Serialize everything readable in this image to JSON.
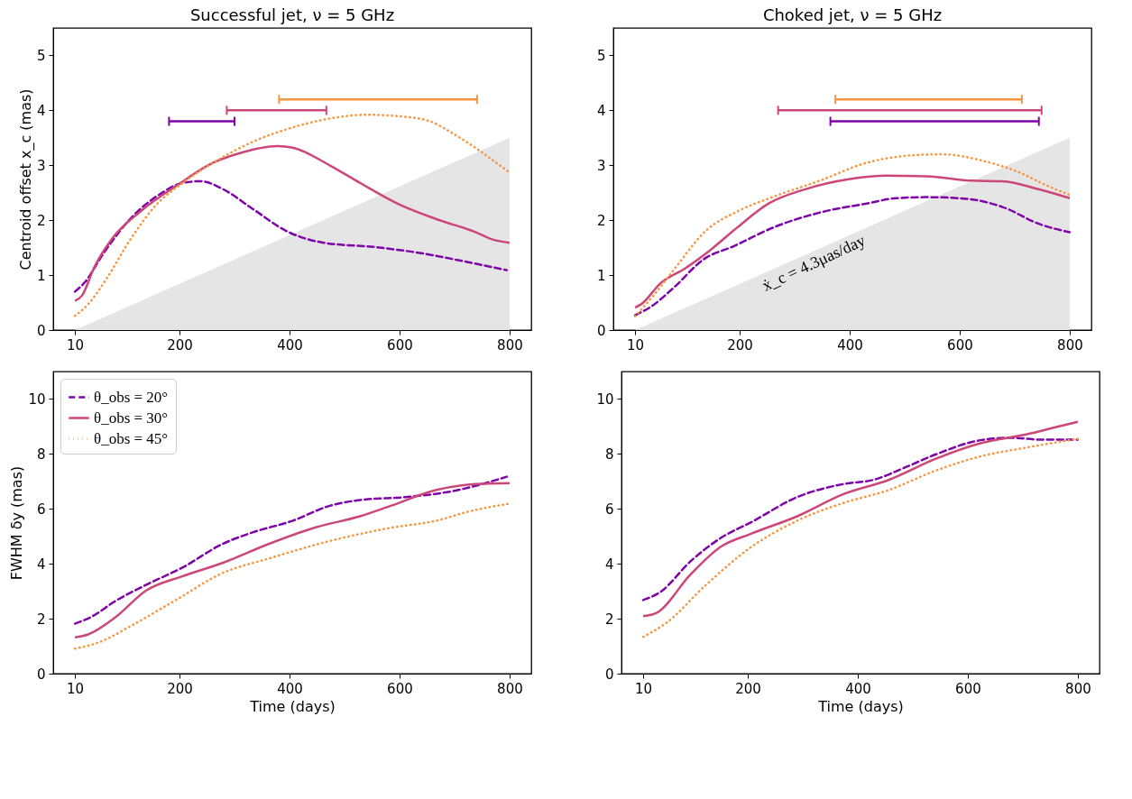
{
  "chart_data": [
    {
      "type": "line",
      "title": "Successful jet, ν = 5 GHz",
      "ylabel": "Centroid offset x_c (mas)",
      "xlim": [
        -29.5,
        839.5
      ],
      "ylim": [
        0,
        5.5
      ],
      "xticks": [
        10,
        200,
        400,
        600,
        800
      ],
      "yticks": [
        0,
        1,
        2,
        3,
        4,
        5
      ],
      "series": [
        {
          "type": "area",
          "color": "#e5e5e5",
          "x": [
            10,
            800
          ],
          "values": [
            0,
            3.5
          ]
        },
        {
          "type": "line",
          "color": "#7e03a8",
          "line_style": "dashed",
          "x": [
            10,
            28,
            62,
            112,
            167,
            206,
            239,
            278,
            334,
            395,
            462,
            556,
            639,
            723,
            795
          ],
          "values": [
            0.7,
            0.87,
            1.4,
            2.04,
            2.49,
            2.68,
            2.71,
            2.57,
            2.2,
            1.8,
            1.59,
            1.51,
            1.4,
            1.24,
            1.09
          ]
        },
        {
          "type": "line",
          "color": "#cc4778",
          "line_style": "solid",
          "x": [
            10,
            23,
            45,
            78,
            128,
            195,
            262,
            306,
            378,
            406,
            473,
            528,
            601,
            667,
            739,
            772,
            800
          ],
          "values": [
            0.53,
            0.63,
            1.14,
            1.67,
            2.15,
            2.63,
            3.05,
            3.21,
            3.35,
            3.32,
            3.0,
            2.68,
            2.28,
            2.02,
            1.78,
            1.64,
            1.59
          ]
        },
        {
          "type": "line",
          "color": "#f89540",
          "line_style": "dotted",
          "x": [
            10,
            34,
            67,
            112,
            156,
            206,
            262,
            334,
            406,
            473,
            539,
            612,
            656,
            695,
            745,
            778,
            800
          ],
          "values": [
            0.26,
            0.47,
            0.93,
            1.67,
            2.26,
            2.68,
            3.05,
            3.43,
            3.69,
            3.85,
            3.92,
            3.88,
            3.8,
            3.59,
            3.27,
            3.03,
            2.87
          ]
        },
        {
          "type": "line",
          "color": "#7e03a8",
          "line_style": "solid",
          "x": [
            181,
            300
          ],
          "values": [
            3.8,
            3.8
          ]
        },
        {
          "type": "line",
          "color": "#cc4778",
          "line_style": "solid",
          "x": [
            286,
            467
          ],
          "values": [
            4.0,
            4.0
          ]
        },
        {
          "type": "line",
          "color": "#f89540",
          "line_style": "solid",
          "x": [
            381,
            741
          ],
          "values": [
            4.2,
            4.2
          ]
        }
      ]
    },
    {
      "type": "line",
      "title": "Choked jet, ν = 5 GHz",
      "xlim": [
        -29.5,
        839.5
      ],
      "ylim": [
        0,
        5.5
      ],
      "xticks": [
        10,
        200,
        400,
        600,
        800
      ],
      "yticks": [
        0,
        1,
        2,
        3,
        4,
        5
      ],
      "annotations": [
        "ẋ_c = 4.3μas/day"
      ],
      "series": [
        {
          "type": "area",
          "color": "#e5e5e5",
          "x": [
            10,
            800
          ],
          "values": [
            0,
            3.5
          ]
        },
        {
          "type": "line",
          "color": "#7e03a8",
          "line_style": "dashed",
          "x": [
            10,
            41,
            79,
            135,
            190,
            262,
            346,
            429,
            484,
            540,
            612,
            678,
            745,
            800
          ],
          "values": [
            0.27,
            0.44,
            0.76,
            1.29,
            1.53,
            1.87,
            2.14,
            2.3,
            2.4,
            2.42,
            2.39,
            2.24,
            1.93,
            1.78
          ]
        },
        {
          "type": "line",
          "color": "#cc4778",
          "line_style": "solid",
          "x": [
            10,
            21,
            57,
            102,
            146,
            196,
            252,
            318,
            401,
            467,
            540,
            623,
            678,
            745,
            800
          ],
          "values": [
            0.41,
            0.47,
            0.86,
            1.13,
            1.45,
            1.87,
            2.3,
            2.56,
            2.75,
            2.81,
            2.8,
            2.72,
            2.71,
            2.56,
            2.4
          ]
        },
        {
          "type": "line",
          "color": "#f89540",
          "line_style": "dotted",
          "x": [
            10,
            41,
            79,
            140,
            196,
            262,
            346,
            429,
            512,
            568,
            639,
            706,
            761,
            800
          ],
          "values": [
            0.25,
            0.6,
            1.08,
            1.82,
            2.16,
            2.43,
            2.72,
            3.04,
            3.18,
            3.2,
            3.09,
            2.88,
            2.62,
            2.46
          ]
        },
        {
          "type": "line",
          "color": "#f89540",
          "line_style": "solid",
          "x": [
            374,
            713
          ],
          "values": [
            4.2,
            4.2
          ]
        },
        {
          "type": "line",
          "color": "#cc4778",
          "line_style": "solid",
          "x": [
            270,
            749
          ],
          "values": [
            4.0,
            4.0
          ]
        },
        {
          "type": "line",
          "color": "#7e03a8",
          "line_style": "solid",
          "x": [
            365,
            744
          ],
          "values": [
            3.8,
            3.8
          ]
        }
      ]
    },
    {
      "type": "line",
      "xlabel": "Time (days)",
      "ylabel": "FWHM δy (mas)",
      "xlim": [
        -29.5,
        839.5
      ],
      "ylim": [
        0,
        11
      ],
      "xticks": [
        10,
        200,
        400,
        600,
        800
      ],
      "yticks": [
        0,
        2,
        4,
        6,
        8,
        10
      ],
      "legend": "top left",
      "series": [
        {
          "type": "line",
          "name": "θ_obs = 20°",
          "color": "#7e03a8",
          "line_style": "dashed",
          "x": [
            10,
            39,
            84,
            139,
            206,
            278,
            334,
            406,
            473,
            528,
            612,
            695,
            795
          ],
          "values": [
            1.82,
            2.06,
            2.65,
            3.23,
            3.87,
            4.72,
            5.15,
            5.57,
            6.11,
            6.32,
            6.43,
            6.64,
            7.17
          ]
        },
        {
          "type": "line",
          "name": "θ_obs = 30°",
          "color": "#cc4778",
          "line_style": "solid",
          "x": [
            10,
            34,
            84,
            139,
            206,
            278,
            362,
            445,
            528,
            584,
            667,
            739,
            800
          ],
          "values": [
            1.32,
            1.43,
            2.06,
            3.02,
            3.55,
            4.03,
            4.72,
            5.31,
            5.73,
            6.11,
            6.69,
            6.9,
            6.94
          ]
        },
        {
          "type": "line",
          "name": "θ_obs = 45°",
          "color": "#f89540",
          "line_style": "dotted",
          "x": [
            10,
            56,
            112,
            195,
            278,
            362,
            473,
            584,
            667,
            723,
            800
          ],
          "values": [
            0.91,
            1.16,
            1.74,
            2.7,
            3.66,
            4.19,
            4.83,
            5.31,
            5.57,
            5.89,
            6.19
          ]
        }
      ]
    },
    {
      "type": "line",
      "xlabel": "Time (days)",
      "xlim": [
        -29.5,
        839.5
      ],
      "ylim": [
        0,
        11
      ],
      "xticks": [
        10,
        200,
        400,
        600,
        800
      ],
      "yticks": [
        0,
        2,
        4,
        6,
        8,
        10
      ],
      "series": [
        {
          "type": "line",
          "color": "#7e03a8",
          "line_style": "dashed",
          "x": [
            10,
            41,
            96,
            151,
            207,
            290,
            373,
            429,
            484,
            540,
            623,
            678,
            734,
            800
          ],
          "values": [
            2.68,
            2.97,
            4.09,
            4.94,
            5.52,
            6.43,
            6.9,
            7.06,
            7.49,
            7.97,
            8.5,
            8.59,
            8.52,
            8.52
          ]
        },
        {
          "type": "line",
          "color": "#cc4778",
          "line_style": "solid",
          "x": [
            10,
            35,
            96,
            151,
            207,
            290,
            373,
            457,
            540,
            623,
            706,
            761,
            800
          ],
          "values": [
            2.09,
            2.22,
            3.61,
            4.62,
            5.1,
            5.73,
            6.53,
            7.06,
            7.81,
            8.39,
            8.71,
            8.98,
            9.17
          ]
        },
        {
          "type": "line",
          "color": "#f89540",
          "line_style": "dotted",
          "x": [
            10,
            52,
            124,
            207,
            290,
            373,
            457,
            540,
            623,
            706,
            800
          ],
          "values": [
            1.34,
            1.85,
            3.23,
            4.62,
            5.57,
            6.21,
            6.69,
            7.38,
            7.91,
            8.23,
            8.55
          ]
        }
      ]
    }
  ]
}
